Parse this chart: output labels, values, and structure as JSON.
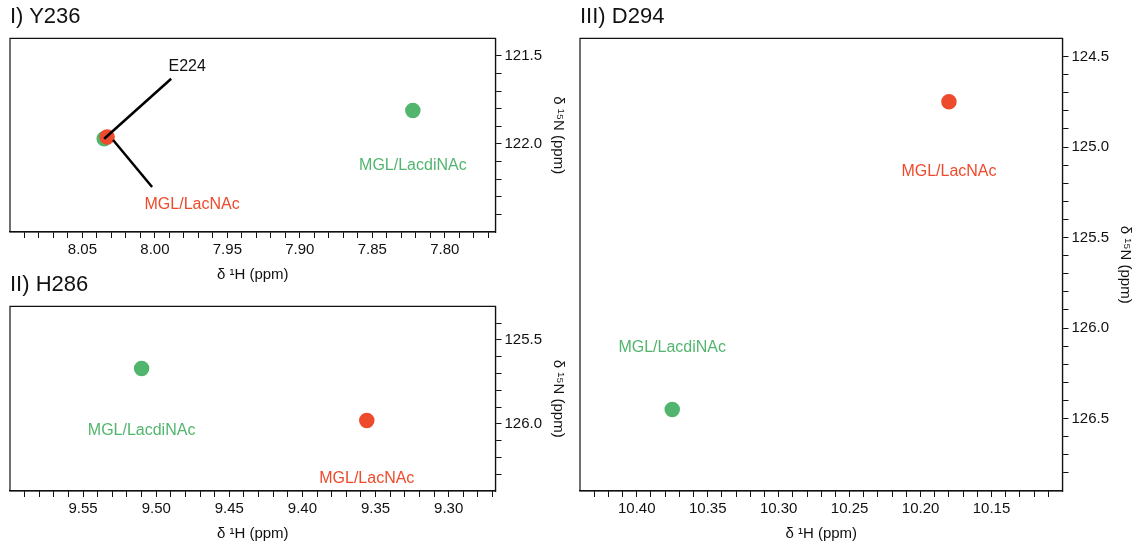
{
  "chart_data": [
    {
      "type": "scatter",
      "title": "I) Y236",
      "xlabel": "δ ¹H (ppm)",
      "ylabel": "δ ¹⁵N (ppm)",
      "xlim": [
        8.1,
        7.765
      ],
      "ylim": [
        122.5,
        121.4
      ],
      "grid": false,
      "marker": "circle",
      "xticks": [
        {
          "value": 8.09,
          "label": null
        },
        {
          "value": 8.08,
          "label": null
        },
        {
          "value": 8.07,
          "label": null
        },
        {
          "value": 8.06,
          "label": null
        },
        8.05,
        {
          "value": 8.04,
          "label": null
        },
        {
          "value": 8.03,
          "label": null
        },
        {
          "value": 8.02,
          "label": null
        },
        {
          "value": 8.01,
          "label": null
        },
        {
          "value": 8,
          "label": "8.00"
        },
        {
          "value": 7.99,
          "label": null
        },
        {
          "value": 7.98,
          "label": null
        },
        {
          "value": 7.97,
          "label": null
        },
        {
          "value": 7.96,
          "label": null
        },
        7.95,
        {
          "value": 7.94,
          "label": null
        },
        {
          "value": 7.93,
          "label": null
        },
        {
          "value": 7.92,
          "label": null
        },
        {
          "value": 7.91,
          "label": null
        },
        {
          "value": 7.9,
          "label": "7.90"
        },
        {
          "value": 7.89,
          "label": null
        },
        {
          "value": 7.88,
          "label": null
        },
        {
          "value": 7.87,
          "label": null
        },
        {
          "value": 7.86,
          "label": null
        },
        7.85,
        {
          "value": 7.84,
          "label": null
        },
        {
          "value": 7.83,
          "label": null
        },
        {
          "value": 7.82,
          "label": null
        },
        {
          "value": 7.81,
          "label": null
        },
        {
          "value": 7.8,
          "label": "7.80"
        },
        {
          "value": 7.79,
          "label": null
        },
        {
          "value": 7.78,
          "label": null
        },
        {
          "value": 7.77,
          "label": null
        }
      ],
      "yticks": [
        121.5,
        {
          "value": 121.6,
          "label": null
        },
        {
          "value": 121.7,
          "label": null
        },
        {
          "value": 121.8,
          "label": null
        },
        {
          "value": 121.9,
          "label": null
        },
        {
          "value": 122,
          "label": "122.0"
        },
        {
          "value": 122.1,
          "label": null
        },
        {
          "value": 122.2,
          "label": null
        },
        {
          "value": 122.3,
          "label": null
        },
        {
          "value": 122.4,
          "label": null
        }
      ],
      "series": [
        {
          "name": "MGL/LacNAc",
          "color": "#ee4a2c",
          "x": [
            8.033
          ],
          "values": [
            121.96
          ]
        },
        {
          "name": "MGL/LacdiNAc",
          "color": "#52b56e",
          "x": [
            8.035,
            7.822
          ],
          "values": [
            121.97,
            121.81
          ]
        }
      ],
      "annotations": [
        {
          "text": "E224",
          "x": 8.035,
          "y": 121.97
        }
      ]
    },
    {
      "type": "scatter",
      "title": "II) H286",
      "xlabel": "δ ¹H (ppm)",
      "ylabel": "δ ¹⁵N (ppm)",
      "xlim": [
        9.6,
        9.268
      ],
      "ylim": [
        126.4,
        125.3
      ],
      "grid": false,
      "marker": "circle",
      "xticks": [
        {
          "value": 9.59,
          "label": null
        },
        {
          "value": 9.58,
          "label": null
        },
        {
          "value": 9.57,
          "label": null
        },
        {
          "value": 9.56,
          "label": null
        },
        9.55,
        {
          "value": 9.54,
          "label": null
        },
        {
          "value": 9.53,
          "label": null
        },
        {
          "value": 9.52,
          "label": null
        },
        {
          "value": 9.51,
          "label": null
        },
        {
          "value": 9.5,
          "label": "9.50"
        },
        {
          "value": 9.49,
          "label": null
        },
        {
          "value": 9.48,
          "label": null
        },
        {
          "value": 9.47,
          "label": null
        },
        {
          "value": 9.46,
          "label": null
        },
        9.45,
        {
          "value": 9.44,
          "label": null
        },
        {
          "value": 9.43,
          "label": null
        },
        {
          "value": 9.42,
          "label": null
        },
        {
          "value": 9.41,
          "label": null
        },
        {
          "value": 9.4,
          "label": "9.40"
        },
        {
          "value": 9.39,
          "label": null
        },
        {
          "value": 9.38,
          "label": null
        },
        {
          "value": 9.37,
          "label": null
        },
        {
          "value": 9.36,
          "label": null
        },
        9.35,
        {
          "value": 9.34,
          "label": null
        },
        {
          "value": 9.33,
          "label": null
        },
        {
          "value": 9.32,
          "label": null
        },
        {
          "value": 9.31,
          "label": null
        },
        {
          "value": 9.3,
          "label": "9.30"
        },
        {
          "value": 9.29,
          "label": null
        },
        {
          "value": 9.28,
          "label": null
        },
        {
          "value": 9.27,
          "label": null
        }
      ],
      "yticks": [
        {
          "value": 125.4,
          "label": null
        },
        125.5,
        {
          "value": 125.6,
          "label": null
        },
        {
          "value": 125.7,
          "label": null
        },
        {
          "value": 125.8,
          "label": null
        },
        {
          "value": 125.9,
          "label": null
        },
        {
          "value": 126,
          "label": "126.0"
        },
        {
          "value": 126.1,
          "label": null
        },
        {
          "value": 126.2,
          "label": null
        },
        {
          "value": 126.3,
          "label": null
        }
      ],
      "series": [
        {
          "name": "MGL/LacdiNAc",
          "color": "#52b56e",
          "x": [
            9.51
          ],
          "values": [
            125.67
          ]
        },
        {
          "name": "MGL/LacNAc",
          "color": "#ee4a2c",
          "x": [
            9.356
          ],
          "values": [
            125.98
          ]
        }
      ]
    },
    {
      "type": "scatter",
      "title": "III) D294",
      "xlabel": "δ ¹H (ppm)",
      "ylabel": "δ ¹⁵N (ppm)",
      "xlim": [
        10.44,
        10.1
      ],
      "ylim": [
        126.9,
        124.4
      ],
      "grid": false,
      "marker": "circle",
      "xticks": [
        {
          "value": 10.43,
          "label": null
        },
        {
          "value": 10.42,
          "label": null
        },
        {
          "value": 10.41,
          "label": null
        },
        {
          "value": 10.4,
          "label": "10.40"
        },
        {
          "value": 10.39,
          "label": null
        },
        {
          "value": 10.38,
          "label": null
        },
        {
          "value": 10.37,
          "label": null
        },
        {
          "value": 10.36,
          "label": null
        },
        10.35,
        {
          "value": 10.34,
          "label": null
        },
        {
          "value": 10.33,
          "label": null
        },
        {
          "value": 10.32,
          "label": null
        },
        {
          "value": 10.31,
          "label": null
        },
        {
          "value": 10.3,
          "label": "10.30"
        },
        {
          "value": 10.29,
          "label": null
        },
        {
          "value": 10.28,
          "label": null
        },
        {
          "value": 10.27,
          "label": null
        },
        {
          "value": 10.26,
          "label": null
        },
        10.25,
        {
          "value": 10.24,
          "label": null
        },
        {
          "value": 10.23,
          "label": null
        },
        {
          "value": 10.22,
          "label": null
        },
        {
          "value": 10.21,
          "label": null
        },
        {
          "value": 10.2,
          "label": "10.20"
        },
        {
          "value": 10.19,
          "label": null
        },
        {
          "value": 10.18,
          "label": null
        },
        {
          "value": 10.17,
          "label": null
        },
        {
          "value": 10.16,
          "label": null
        },
        10.15,
        {
          "value": 10.14,
          "label": null
        },
        {
          "value": 10.13,
          "label": null
        },
        {
          "value": 10.12,
          "label": null
        },
        {
          "value": 10.11,
          "label": null
        }
      ],
      "yticks": [
        124.5,
        {
          "value": 124.6,
          "label": null
        },
        {
          "value": 124.7,
          "label": null
        },
        {
          "value": 124.8,
          "label": null
        },
        {
          "value": 124.9,
          "label": null
        },
        {
          "value": 125,
          "label": "125.0"
        },
        {
          "value": 125.1,
          "label": null
        },
        {
          "value": 125.2,
          "label": null
        },
        {
          "value": 125.3,
          "label": null
        },
        {
          "value": 125.4,
          "label": null
        },
        125.5,
        {
          "value": 125.6,
          "label": null
        },
        {
          "value": 125.7,
          "label": null
        },
        {
          "value": 125.8,
          "label": null
        },
        {
          "value": 125.9,
          "label": null
        },
        {
          "value": 126,
          "label": "126.0"
        },
        {
          "value": 126.1,
          "label": null
        },
        {
          "value": 126.2,
          "label": null
        },
        {
          "value": 126.3,
          "label": null
        },
        {
          "value": 126.4,
          "label": null
        },
        126.5,
        {
          "value": 126.6,
          "label": null
        },
        {
          "value": 126.7,
          "label": null
        },
        {
          "value": 126.8,
          "label": null
        }
      ],
      "series": [
        {
          "name": "MGL/LacdiNAc",
          "color": "#52b56e",
          "x": [
            10.375
          ],
          "values": [
            126.45
          ]
        },
        {
          "name": "MGL/LacNAc",
          "color": "#ee4a2c",
          "x": [
            10.18
          ],
          "values": [
            124.75
          ]
        }
      ]
    }
  ]
}
